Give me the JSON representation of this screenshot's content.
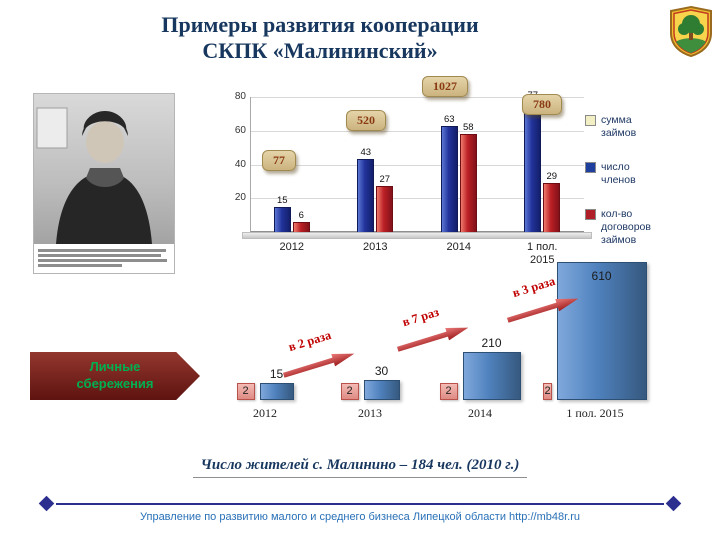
{
  "slide": {
    "title_line1": "Примеры развития кооперации",
    "title_line2": "СКПК «Малининский»",
    "residents_note": "Число жителей с. Малинино – 184 чел. (2010 г.)",
    "footer_text": "Управление по развитию малого и среднего бизнеса Липецкой области http://mb48r.ru"
  },
  "chart_data": [
    {
      "type": "bar",
      "title": "",
      "categories": [
        "2012",
        "2013",
        "2014",
        "1 пол.\n2015"
      ],
      "series": [
        {
          "name": "число членов",
          "color": "#1F3F9E",
          "values": [
            15,
            43,
            63,
            77
          ]
        },
        {
          "name": "кол-во договоров займов",
          "color": "#B01E28",
          "values": [
            6,
            27,
            58,
            29
          ]
        }
      ],
      "callouts": {
        "series": "сумма займов",
        "values": [
          "77",
          "520",
          "1027",
          "780"
        ]
      },
      "ylim": [
        0,
        80
      ],
      "yticks": [
        20,
        40,
        60,
        80
      ],
      "grid": true,
      "legend_position": "right",
      "legend": [
        {
          "label": "сумма займов",
          "color": "#F2EFC4"
        },
        {
          "label": "число членов",
          "color": "#1F3F9E"
        },
        {
          "label": "кол-во договоров займов",
          "color": "#B01E28"
        }
      ]
    },
    {
      "type": "bar",
      "title": "",
      "row_label": "Личные сбережения",
      "categories": [
        "2012",
        "2013",
        "2014",
        "1 пол. 2015"
      ],
      "series": [
        {
          "name": "",
          "color": "#E89B93",
          "values": [
            2,
            2,
            2,
            2
          ]
        },
        {
          "name": "личные сбережения",
          "color": "#4F81BD",
          "values": [
            15,
            30,
            210,
            610
          ]
        }
      ],
      "growth_annotations": [
        "в 2 раза",
        "в 7 раз",
        "в 3 раза"
      ],
      "legend_position": "none"
    }
  ]
}
